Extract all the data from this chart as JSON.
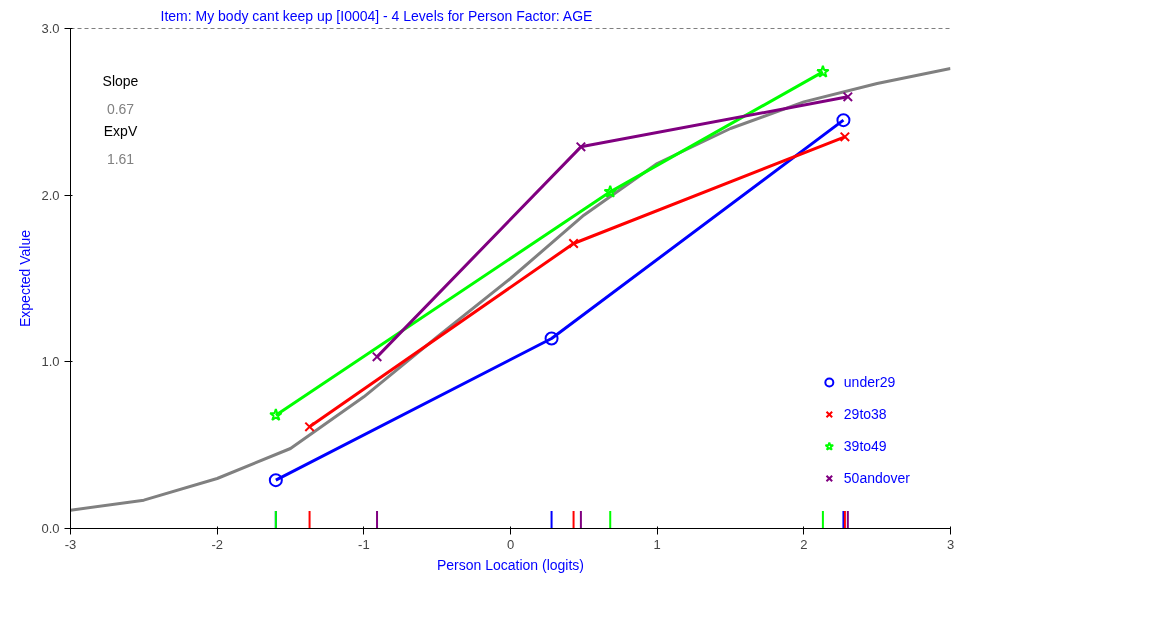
{
  "chart_data": {
    "type": "line",
    "title": "Item: My body cant keep up [I0004] - 4 Levels for Person Factor: AGE",
    "xlabel": "Person Location (logits)",
    "ylabel": "Expected Value",
    "xlim": [
      -3,
      3
    ],
    "ylim": [
      0,
      3
    ],
    "xticks": [
      -3,
      -2,
      -1,
      0,
      1,
      2,
      3
    ],
    "yticks": [
      {
        "value": 0,
        "label": "0.0"
      },
      {
        "value": 1,
        "label": "1.0"
      },
      {
        "value": 2,
        "label": "2.0"
      },
      {
        "value": 3,
        "label": "3.0"
      }
    ],
    "grid": false,
    "legend": "bottom right",
    "ref_lines": [
      {
        "axis": "y",
        "value": 3,
        "color": "#000000",
        "line_style": "dashed"
      }
    ],
    "annotations": [
      "Slope",
      "0.67",
      "ExpV",
      "1.61"
    ],
    "series": [
      {
        "color": "#808080",
        "marker": "none",
        "x": [
          -3,
          -2.5,
          -2,
          -1.5,
          -1,
          -0.5,
          0,
          0.5,
          1,
          1.5,
          2,
          2.5,
          3
        ],
        "values": [
          0.11,
          0.17,
          0.3,
          0.48,
          0.79,
          1.15,
          1.5,
          1.88,
          2.19,
          2.4,
          2.56,
          2.67,
          2.76
        ]
      },
      {
        "name": "under29",
        "color": "#0000ff",
        "marker": "circle",
        "x": [
          -1.6,
          0.28,
          2.27
        ],
        "values": [
          0.29,
          1.14,
          2.45
        ]
      },
      {
        "name": "29to38",
        "color": "#ff0000",
        "marker": "cross",
        "x": [
          -1.37,
          0.43,
          2.28
        ],
        "values": [
          0.61,
          1.71,
          2.35
        ]
      },
      {
        "name": "39to49",
        "color": "#00ff00",
        "marker": "star",
        "x": [
          -1.6,
          0.68,
          2.13
        ],
        "values": [
          0.68,
          2.02,
          2.74
        ]
      },
      {
        "name": "50andover",
        "color": "#800080",
        "marker": "cross",
        "x": [
          -0.91,
          0.48,
          2.3
        ],
        "values": [
          1.03,
          2.29,
          2.59
        ]
      }
    ]
  }
}
